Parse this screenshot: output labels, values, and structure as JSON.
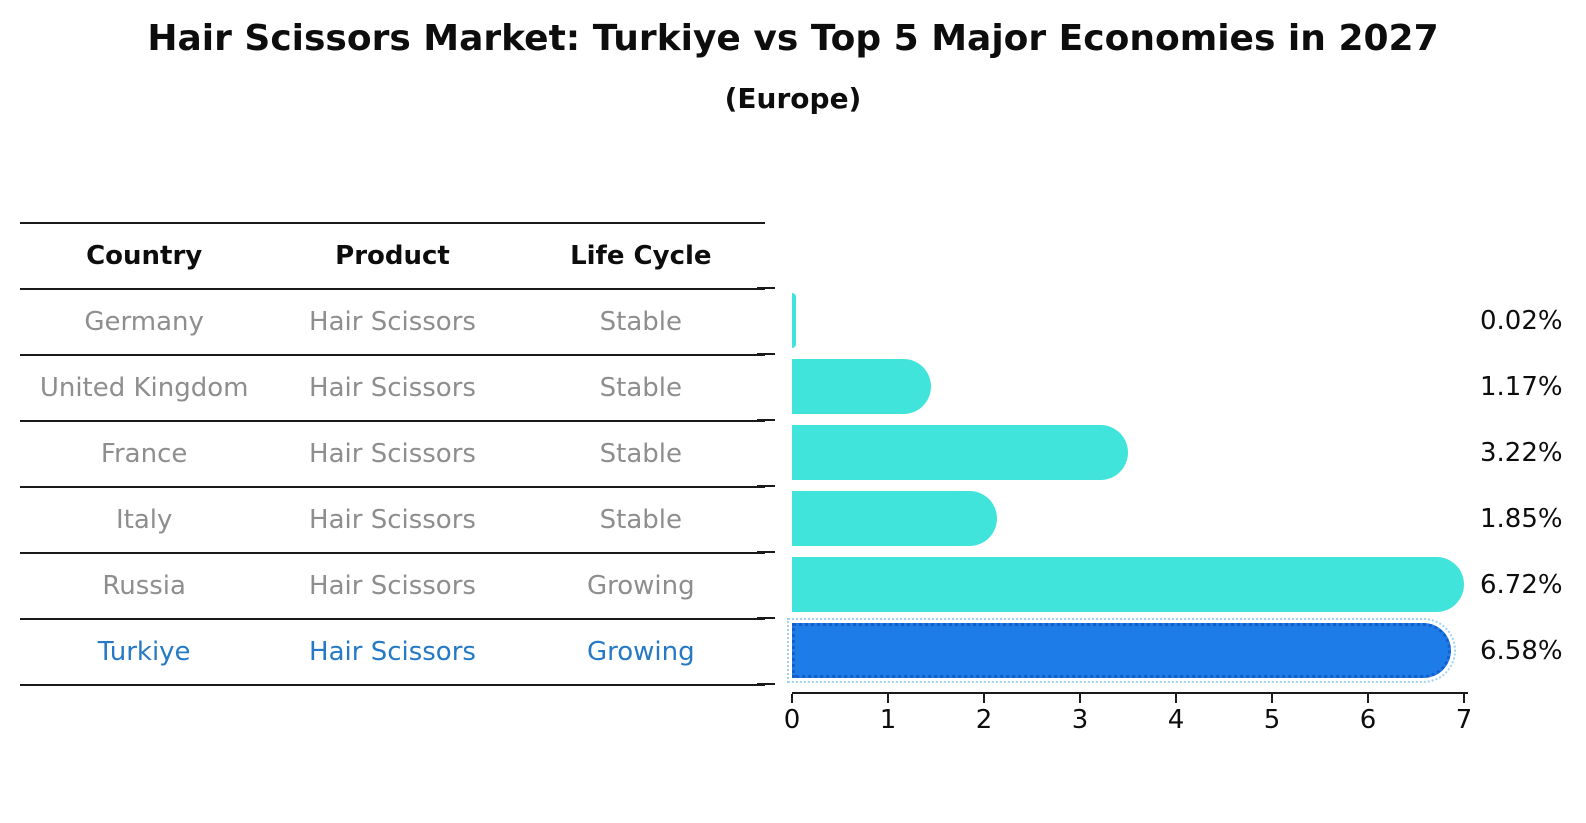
{
  "title": "Hair Scissors Market: Turkiye vs Top 5 Major Economies in 2027",
  "subtitle": "(Europe)",
  "table": {
    "headers": [
      "Country",
      "Product",
      "Life Cycle"
    ],
    "rows": [
      {
        "country": "Germany",
        "product": "Hair Scissors",
        "life_cycle": "Stable",
        "highlighted": false
      },
      {
        "country": "United Kingdom",
        "product": "Hair Scissors",
        "life_cycle": "Stable",
        "highlighted": false
      },
      {
        "country": "France",
        "product": "Hair Scissors",
        "life_cycle": "Stable",
        "highlighted": false
      },
      {
        "country": "Italy",
        "product": "Hair Scissors",
        "life_cycle": "Stable",
        "highlighted": false
      },
      {
        "country": "Russia",
        "product": "Hair Scissors",
        "life_cycle": "Growing",
        "highlighted": false
      },
      {
        "country": "Turkiye",
        "product": "Hair Scissors",
        "life_cycle": "Growing",
        "highlighted": true
      }
    ]
  },
  "chart_data": {
    "type": "bar",
    "orientation": "horizontal",
    "title": "Hair Scissors Market: Turkiye vs Top 5 Major Economies in 2027 (Europe)",
    "categories": [
      "Germany",
      "United Kingdom",
      "France",
      "Italy",
      "Russia",
      "Turkiye"
    ],
    "values": [
      0.02,
      1.17,
      3.22,
      1.85,
      6.72,
      6.58
    ],
    "value_labels": [
      "0.02%",
      "1.17%",
      "3.22%",
      "1.85%",
      "6.72%",
      "6.58%"
    ],
    "xlim": [
      0,
      7
    ],
    "x_ticks": [
      0,
      1,
      2,
      3,
      4,
      5,
      6,
      7
    ],
    "grid": false,
    "legend": false,
    "bar_color": "#40e4db",
    "highlight_bar_color": "#1e7ce9",
    "highlight_index": 5
  },
  "colors": {
    "bar_cyan": "#40e4db",
    "bar_blue": "#1e7ce9",
    "highlight_text_blue": "#2579c5",
    "row_text_gray": "#8e8e8e",
    "axis_black": "#1a1a1a"
  }
}
